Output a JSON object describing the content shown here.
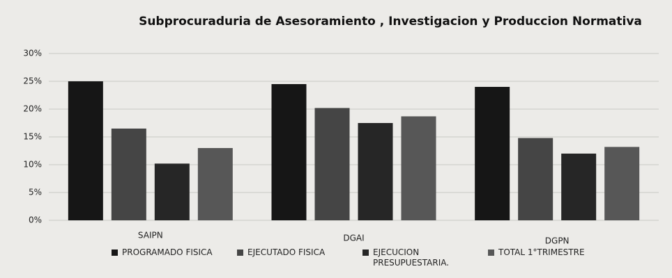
{
  "chart_data": {
    "type": "bar",
    "title": "Subprocuraduria de Asesoramiento , Investigacion y Produccion Normativa",
    "categories": [
      "SAIPN",
      "DGAI",
      "DGPN"
    ],
    "series": [
      {
        "name": "PROGRAMADO FISICA",
        "color": "#161616",
        "values": [
          25,
          24.5,
          24
        ]
      },
      {
        "name": "EJECUTADO FISICA",
        "color": "#454545",
        "values": [
          16.5,
          20.2,
          14.8
        ]
      },
      {
        "name": "EJECUCION PRESUPUESTARIA.",
        "color": "#262626",
        "values": [
          10.2,
          17.5,
          12
        ]
      },
      {
        "name": "TOTAL 1°TRIMESTRE",
        "color": "#575757",
        "values": [
          13,
          18.7,
          13.2
        ]
      }
    ],
    "ylim": [
      0,
      30
    ],
    "yticks": [
      {
        "value": 0,
        "label": "0%"
      },
      {
        "value": 5,
        "label": "5%"
      },
      {
        "value": 10,
        "label": "10%"
      },
      {
        "value": 15,
        "label": "15%"
      },
      {
        "value": 20,
        "label": "20%"
      },
      {
        "value": 25,
        "label": "25%"
      },
      {
        "value": 30,
        "label": "30%"
      }
    ],
    "grid": true
  }
}
